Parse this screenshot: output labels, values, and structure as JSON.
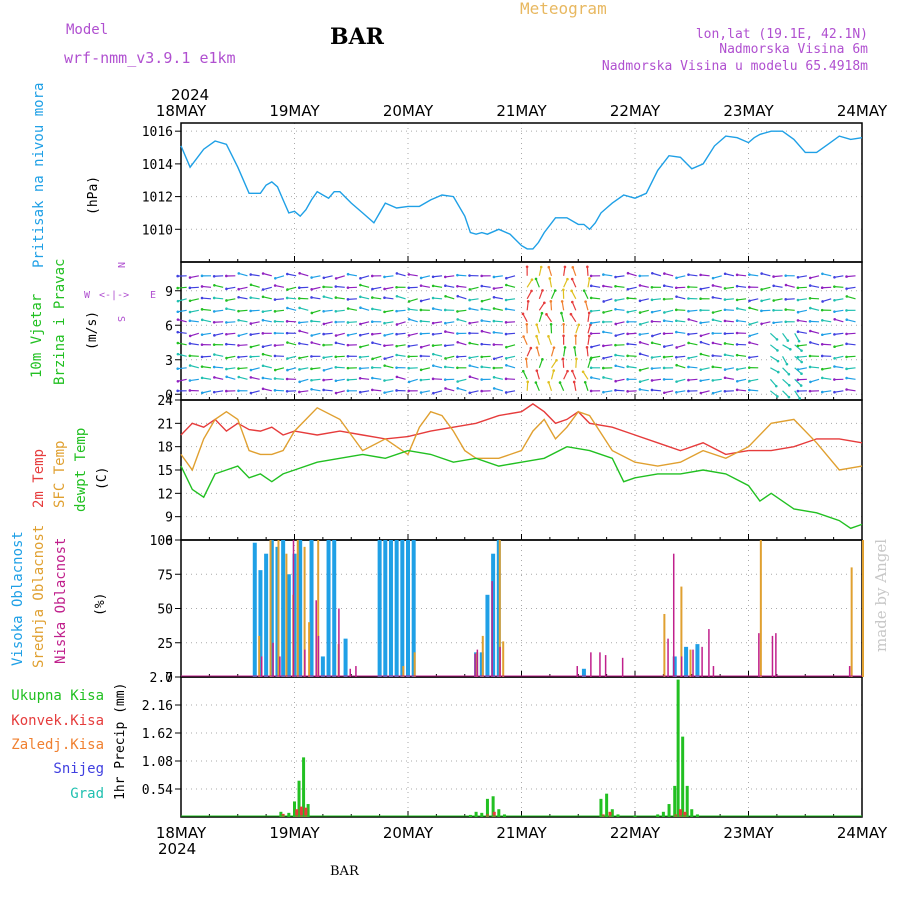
{
  "header": {
    "model_label": "Model",
    "model_name": "wrf-nmm_v3.9.1  e1km",
    "station": "BAR",
    "chart_title": "Meteogram",
    "lonlat": "lon,lat (19.1E, 42.1N)",
    "elevation": "Nadmorska Visina 6m",
    "model_elevation": "Nadmorska Visina u modelu 65.4918m",
    "footer_station": "BAR",
    "watermark": "made by Angel"
  },
  "colors": {
    "pressure": "#1fa0e6",
    "temp2m": "#e63c3c",
    "sfc_temp": "#e0a030",
    "dewpoint": "#22c022",
    "high_cloud": "#1fa0e6",
    "mid_cloud": "#e0a030",
    "low_cloud": "#c0208c",
    "total_precip": "#22c022",
    "conv_precip": "#e63c3c",
    "freezing": "#f08030",
    "snow": "#4040e0",
    "hail": "#20c0b0",
    "purple_text": "#b050d0"
  },
  "chart_data": [
    {
      "id": "pressure",
      "type": "line",
      "ylabel": "(hPa)",
      "side_label": "Pritisak na nivou mora",
      "year_label": "2024",
      "x_ticks": [
        "18MAY",
        "19MAY",
        "20MAY",
        "21MAY",
        "22MAY",
        "23MAY",
        "24MAY"
      ],
      "yticks": [
        1010,
        1012,
        1014,
        1016
      ],
      "ylim": [
        1008.0,
        1016.5
      ],
      "grid": true,
      "series": [
        {
          "x": [
            0,
            0.08,
            0.2,
            0.3,
            0.4,
            0.5,
            0.6,
            0.7,
            0.75,
            0.8,
            0.85,
            0.9,
            0.95,
            1.0,
            1.05,
            1.1,
            1.15,
            1.2,
            1.25,
            1.3,
            1.35,
            1.4,
            1.5,
            1.6,
            1.7,
            1.8,
            1.9,
            2.0,
            2.1,
            2.2,
            2.3,
            2.4,
            2.5,
            2.55,
            2.6,
            2.65,
            2.7,
            2.8,
            2.9,
            3.0,
            3.05,
            3.1,
            3.15,
            3.2,
            3.3,
            3.4,
            3.5,
            3.55,
            3.6,
            3.65,
            3.7,
            3.75,
            3.8,
            3.9,
            4.0,
            4.1,
            4.2,
            4.3,
            4.4,
            4.5,
            4.6,
            4.7,
            4.8,
            4.9,
            5.0,
            5.05,
            5.1,
            5.2,
            5.3,
            5.4,
            5.5,
            5.6,
            5.7,
            5.8,
            5.9,
            6.0
          ],
          "y": [
            1015.1,
            1013.8,
            1014.9,
            1015.4,
            1015.2,
            1013.8,
            1012.2,
            1012.2,
            1012.7,
            1012.9,
            1012.6,
            1011.8,
            1011.0,
            1011.1,
            1010.8,
            1011.2,
            1011.8,
            1012.3,
            1012.1,
            1011.9,
            1012.3,
            1012.3,
            1011.6,
            1011.0,
            1010.4,
            1011.6,
            1011.3,
            1011.4,
            1011.4,
            1011.8,
            1012.1,
            1012.0,
            1010.8,
            1009.8,
            1009.7,
            1009.8,
            1009.7,
            1010.0,
            1009.7,
            1009.0,
            1008.8,
            1008.8,
            1009.2,
            1009.8,
            1010.7,
            1010.7,
            1010.3,
            1010.3,
            1010.0,
            1010.4,
            1011.0,
            1011.3,
            1011.6,
            1012.1,
            1011.9,
            1012.2,
            1013.6,
            1014.5,
            1014.4,
            1013.7,
            1014.0,
            1015.1,
            1015.7,
            1015.6,
            1015.3,
            1015.6,
            1015.8,
            1016.0,
            1016.0,
            1015.5,
            1014.7,
            1014.7,
            1015.2,
            1015.7,
            1015.5,
            1015.6
          ],
          "color": "#1fa0e6"
        }
      ]
    },
    {
      "id": "wind",
      "type": "scatter",
      "ylabel": "(m/s)",
      "side_labels": [
        "10m Vjetar",
        "Brzina i Pravac"
      ],
      "compass": {
        "n": "N",
        "w": "W",
        "e": "E",
        "s": "S",
        "arrows": "<-|->"
      },
      "yticks": [
        0,
        3,
        6,
        9
      ],
      "ylim": [
        -0.5,
        11.5
      ],
      "grid": true
    },
    {
      "id": "temperature",
      "type": "line",
      "ylabel": "(C)",
      "side_labels": [
        {
          "text": "2m Temp",
          "color": "#e63c3c"
        },
        {
          "text": "SFC Temp",
          "color": "#e0a030"
        },
        {
          "text": "dewpt Temp",
          "color": "#22c022"
        }
      ],
      "yticks": [
        6,
        9,
        12,
        15,
        18,
        21,
        24
      ],
      "ylim": [
        6,
        24
      ],
      "grid": true,
      "series": [
        {
          "name": "2m Temp",
          "color": "#e63c3c",
          "x": [
            0,
            0.1,
            0.2,
            0.3,
            0.4,
            0.5,
            0.6,
            0.7,
            0.8,
            0.9,
            1.0,
            1.2,
            1.4,
            1.6,
            1.8,
            2.0,
            2.2,
            2.4,
            2.6,
            2.8,
            3.0,
            3.1,
            3.2,
            3.3,
            3.4,
            3.5,
            3.6,
            3.8,
            4.0,
            4.2,
            4.4,
            4.6,
            4.8,
            5.0,
            5.2,
            5.4,
            5.6,
            5.8,
            6.0
          ],
          "y": [
            19.5,
            21.0,
            20.5,
            21.5,
            20.0,
            21.0,
            20.2,
            20.0,
            20.5,
            19.5,
            20.0,
            19.5,
            20.0,
            19.5,
            19.0,
            19.3,
            20.0,
            20.5,
            21.0,
            22.0,
            22.5,
            23.5,
            22.5,
            21.0,
            21.5,
            22.5,
            21.0,
            20.5,
            19.5,
            18.5,
            17.5,
            18.5,
            17.0,
            17.5,
            17.5,
            18.0,
            19.0,
            19.0,
            18.5
          ]
        },
        {
          "name": "SFC Temp",
          "color": "#e0a030",
          "x": [
            0,
            0.1,
            0.2,
            0.3,
            0.4,
            0.5,
            0.6,
            0.7,
            0.8,
            0.9,
            1.0,
            1.2,
            1.4,
            1.6,
            1.8,
            2.0,
            2.1,
            2.2,
            2.3,
            2.4,
            2.5,
            2.6,
            2.8,
            3.0,
            3.1,
            3.2,
            3.3,
            3.4,
            3.5,
            3.6,
            3.8,
            4.0,
            4.2,
            4.4,
            4.6,
            4.8,
            5.0,
            5.2,
            5.4,
            5.6,
            5.8,
            6.0
          ],
          "y": [
            17.0,
            15.0,
            19.0,
            21.5,
            22.5,
            21.5,
            17.5,
            17.0,
            17.0,
            17.5,
            20.0,
            23.0,
            21.5,
            17.5,
            19.0,
            17.0,
            20.5,
            22.5,
            22.0,
            20.0,
            17.5,
            16.5,
            16.5,
            17.5,
            20.0,
            21.5,
            19.0,
            20.5,
            22.5,
            22.0,
            17.5,
            16.0,
            15.5,
            16.0,
            17.5,
            16.5,
            18.0,
            21.0,
            21.5,
            18.5,
            15.0,
            15.5
          ]
        },
        {
          "name": "dewpt Temp",
          "color": "#22c022",
          "x": [
            0,
            0.1,
            0.2,
            0.3,
            0.4,
            0.5,
            0.6,
            0.7,
            0.8,
            0.9,
            1.0,
            1.2,
            1.4,
            1.6,
            1.8,
            2.0,
            2.2,
            2.4,
            2.6,
            2.8,
            3.0,
            3.2,
            3.4,
            3.6,
            3.8,
            3.9,
            4.0,
            4.2,
            4.4,
            4.6,
            4.8,
            5.0,
            5.1,
            5.2,
            5.4,
            5.6,
            5.8,
            5.9,
            6.0
          ],
          "y": [
            15.5,
            12.5,
            11.5,
            14.5,
            15.0,
            15.5,
            14.0,
            14.5,
            13.5,
            14.5,
            15.0,
            16.0,
            16.5,
            17.0,
            16.5,
            17.5,
            17.0,
            16.0,
            16.5,
            15.5,
            16.0,
            16.5,
            18.0,
            17.5,
            16.5,
            13.5,
            14.0,
            14.5,
            14.5,
            15.0,
            14.5,
            13.0,
            11.0,
            12.0,
            10.0,
            9.5,
            8.5,
            7.5,
            8.0
          ]
        }
      ]
    },
    {
      "id": "cloud",
      "type": "bar",
      "ylabel": "(%)",
      "side_labels": [
        {
          "text": "Visoka Oblacnost",
          "color": "#1fa0e6"
        },
        {
          "text": "Srednja Oblacnost",
          "color": "#e0a030"
        },
        {
          "text": "Niska Oblacnost",
          "color": "#c0208c"
        }
      ],
      "yticks": [
        0,
        25,
        50,
        75,
        100
      ],
      "ylim": [
        0,
        100
      ],
      "grid": true,
      "high": {
        "x": [
          0.65,
          0.7,
          0.75,
          0.8,
          0.85,
          0.9,
          0.95,
          1.0,
          1.05,
          1.15,
          1.25,
          1.3,
          1.35,
          1.45,
          1.75,
          1.8,
          1.85,
          1.9,
          1.95,
          2.0,
          2.05,
          2.6,
          2.65,
          2.7,
          2.75,
          2.8,
          3.55,
          4.35,
          4.45,
          4.55
        ],
        "y": [
          98,
          78,
          90,
          100,
          95,
          100,
          75,
          90,
          100,
          100,
          15,
          100,
          100,
          28,
          100,
          100,
          100,
          100,
          100,
          100,
          100,
          18,
          18,
          60,
          90,
          100,
          6,
          15,
          22,
          24
        ]
      },
      "mid": {
        "x": [
          0.68,
          0.78,
          0.85,
          0.92,
          0.98,
          1.02,
          1.08,
          1.12,
          1.2,
          1.38,
          1.95,
          2.05,
          2.6,
          2.65,
          2.8,
          2.83,
          4.25,
          4.4,
          4.48,
          5.1,
          5.9,
          6.0
        ],
        "y": [
          30,
          100,
          100,
          90,
          60,
          100,
          95,
          40,
          100,
          24,
          8,
          18,
          18,
          30,
          100,
          26,
          46,
          66,
          20,
          100,
          80,
          100
        ],
        "x_note": "days since 18MAY"
      },
      "low": {
        "x": [
          0.72,
          0.82,
          0.88,
          1.0,
          1.1,
          1.2,
          1.22,
          1.4,
          1.5,
          1.55,
          2.6,
          2.62,
          2.75,
          2.82,
          3.5,
          3.62,
          3.7,
          3.75,
          3.9,
          4.3,
          4.35,
          4.42,
          4.52,
          4.6,
          4.66,
          4.7,
          5.1,
          5.22,
          5.25,
          5.9
        ],
        "y": [
          15,
          25,
          15,
          100,
          20,
          56,
          30,
          50,
          6,
          8,
          17,
          20,
          70,
          22,
          8,
          18,
          18,
          16,
          14,
          28,
          90,
          15,
          20,
          22,
          35,
          8,
          32,
          30,
          32,
          8
        ]
      }
    },
    {
      "id": "precip",
      "type": "bar",
      "ylabel": "1hr Precip (mm)",
      "side_labels": [
        {
          "text": "Ukupna Kisa",
          "color": "#22c022"
        },
        {
          "text": "Konvek.Kisa",
          "color": "#e63c3c"
        },
        {
          "text": "Zaledj.Kisa",
          "color": "#f08030"
        },
        {
          "text": "Snijeg",
          "color": "#4040e0"
        },
        {
          "text": "Grad",
          "color": "#20c0b0"
        }
      ],
      "yticks": [
        0.54,
        1.08,
        1.62,
        2.16,
        2.7
      ],
      "ylim": [
        0,
        2.7
      ],
      "grid": true,
      "x_ticks": [
        "18MAY",
        "19MAY",
        "20MAY",
        "21MAY",
        "22MAY",
        "23MAY",
        "24MAY"
      ],
      "year_label": "2024",
      "total": {
        "x": [
          0.88,
          0.95,
          1.0,
          1.04,
          1.08,
          1.12,
          2.55,
          2.6,
          2.65,
          2.7,
          2.75,
          2.8,
          2.85,
          3.7,
          3.75,
          3.8,
          3.85,
          4.0,
          4.2,
          4.25,
          4.3,
          4.35,
          4.38,
          4.42,
          4.46,
          4.5,
          4.55
        ],
        "y": [
          0.1,
          0.08,
          0.3,
          0.7,
          1.15,
          0.25,
          0.04,
          0.1,
          0.08,
          0.35,
          0.4,
          0.15,
          0.05,
          0.35,
          0.45,
          0.15,
          0.05,
          0.03,
          0.05,
          0.1,
          0.25,
          0.6,
          2.65,
          1.55,
          0.6,
          0.15,
          0.05
        ]
      },
      "conv": {
        "x": [
          0.9,
          1.02,
          1.06,
          1.1,
          2.7,
          2.76,
          3.72,
          3.78,
          4.36,
          4.4,
          4.44
        ],
        "y": [
          0.06,
          0.15,
          0.2,
          0.18,
          0.05,
          0.1,
          0.05,
          0.1,
          0.05,
          0.15,
          0.1
        ]
      }
    }
  ]
}
